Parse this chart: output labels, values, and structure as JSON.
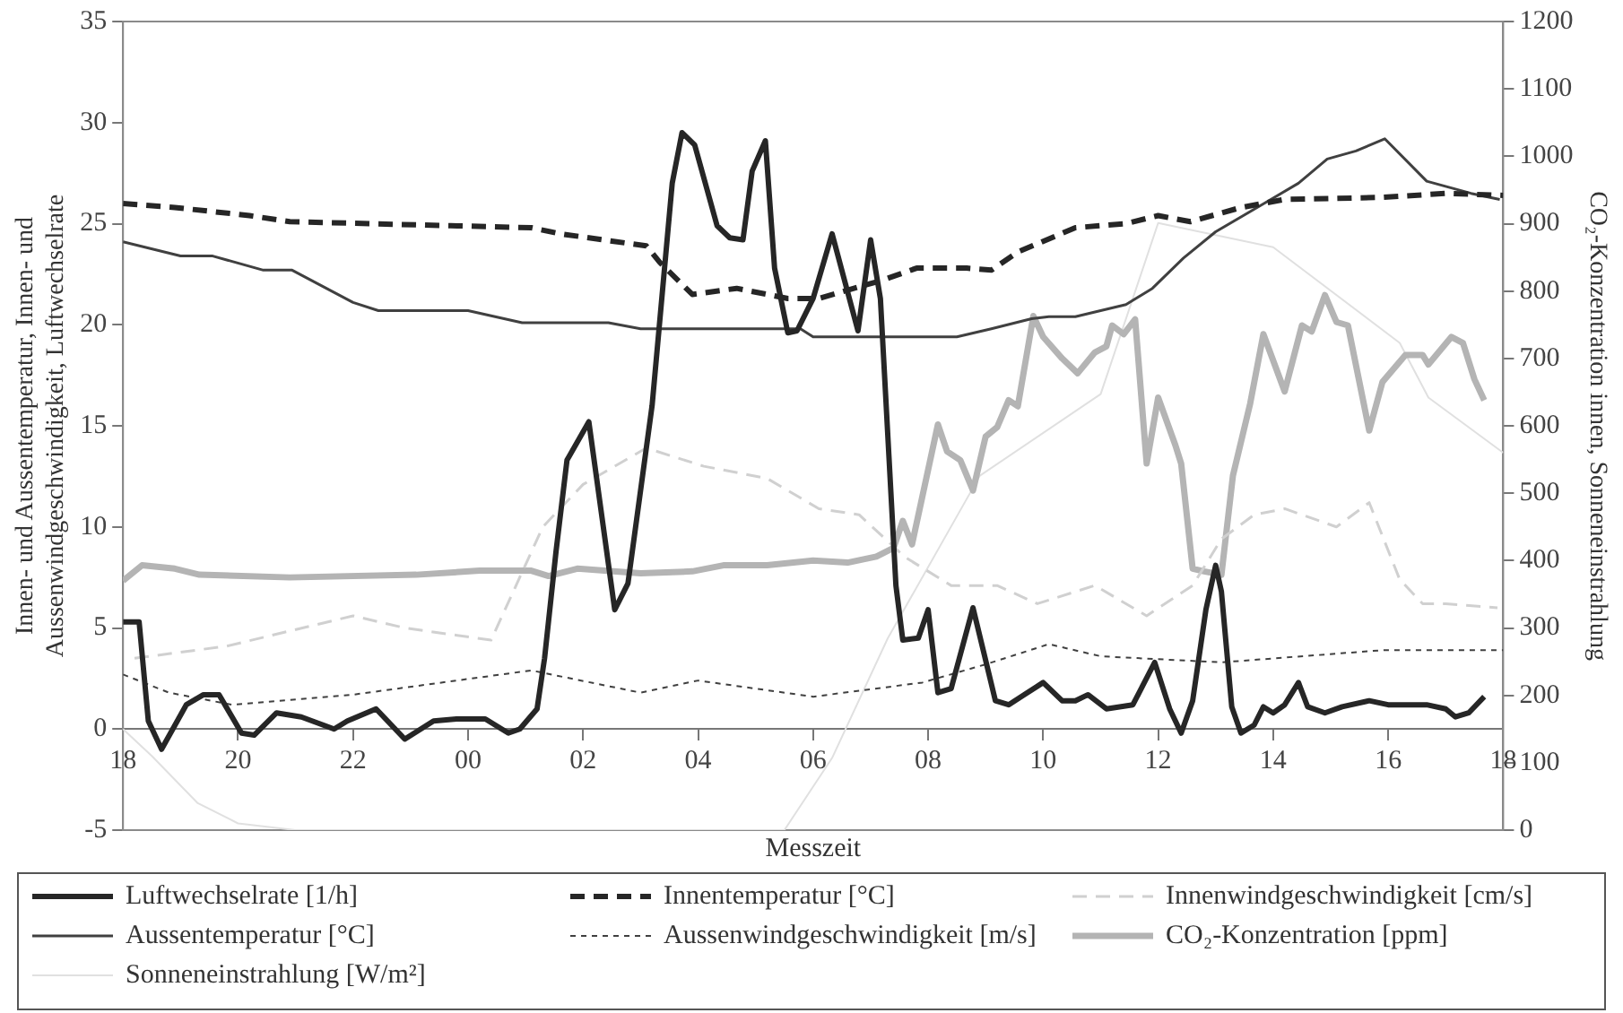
{
  "chart_data": {
    "type": "line",
    "xlabel": "Messzeit",
    "ylabel": [
      "Innen- und Aussentemperatur, Innen- und",
      "Aussenwindgeschwindigkeit, Luftwechselrate"
    ],
    "y2label": "CO₂-Konzentration innen, Sonneneinstrahlung",
    "xlim": [
      18,
      42
    ],
    "xticks": [
      {
        "value": 18,
        "label": "18"
      },
      {
        "value": 20,
        "label": "20"
      },
      {
        "value": 22,
        "label": "22"
      },
      {
        "value": 24,
        "label": "00"
      },
      {
        "value": 26,
        "label": "02"
      },
      {
        "value": 28,
        "label": "04"
      },
      {
        "value": 30,
        "label": "06"
      },
      {
        "value": 32,
        "label": "08"
      },
      {
        "value": 34,
        "label": "10"
      },
      {
        "value": 36,
        "label": "12"
      },
      {
        "value": 38,
        "label": "14"
      },
      {
        "value": 40,
        "label": "16"
      },
      {
        "value": 42,
        "label": "18"
      }
    ],
    "ylim": [
      -5,
      35
    ],
    "yticks": [
      -5,
      0,
      5,
      10,
      15,
      20,
      25,
      30,
      35
    ],
    "y2lim": [
      0,
      1200
    ],
    "y2ticks": [
      0,
      100,
      200,
      300,
      400,
      500,
      600,
      700,
      800,
      900,
      1000,
      1100,
      1200
    ],
    "grid": false,
    "legend": "bottom",
    "marker": "none",
    "series": [
      {
        "name": "Luftwechselrate [1/h]",
        "color": "#262626",
        "line_style": "solid",
        "x": [
          18,
          18.28,
          18.44,
          18.67,
          19.1,
          19.4,
          19.67,
          20.06,
          20.28,
          20.67,
          21.1,
          21.67,
          21.9,
          22.4,
          22.9,
          23.4,
          23.8,
          24.3,
          24.7,
          24.9,
          25.2,
          25.33,
          25.53,
          25.72,
          26.1,
          26.55,
          26.78,
          27.2,
          27.55,
          27.72,
          27.94,
          28.33,
          28.55,
          28.78,
          28.94,
          29.17,
          29.33,
          29.56,
          29.72,
          30,
          30.33,
          30.78,
          31,
          31.17,
          31.44,
          31.56,
          31.83,
          32,
          32.17,
          32.4,
          32.78,
          33.17,
          33.4,
          33.67,
          34,
          34.33,
          34.56,
          34.78,
          35.1,
          35.56,
          35.94,
          36.2,
          36.4,
          36.6,
          36.83,
          37,
          37.1,
          37.28,
          37.44,
          37.67,
          37.83,
          38,
          38.2,
          38.44,
          38.6,
          38.9,
          39.2,
          39.67,
          40,
          40.67,
          41,
          41.17,
          41.4,
          41.67
        ],
        "values": [
          5.3,
          5.3,
          0.4,
          -1.0,
          1.2,
          1.7,
          1.7,
          -0.2,
          -0.3,
          0.8,
          0.6,
          0.0,
          0.4,
          1.0,
          -0.5,
          0.4,
          0.5,
          0.5,
          -0.2,
          0.0,
          1.0,
          3.5,
          8.8,
          13.3,
          15.2,
          5.9,
          7.2,
          16.0,
          27.0,
          29.5,
          28.9,
          24.9,
          24.3,
          24.2,
          27.6,
          29.1,
          22.8,
          19.6,
          19.7,
          21.3,
          24.5,
          19.7,
          24.2,
          21.3,
          7.1,
          4.4,
          4.5,
          5.9,
          1.8,
          2.0,
          6.0,
          1.4,
          1.2,
          1.7,
          2.3,
          1.4,
          1.4,
          1.7,
          1.0,
          1.2,
          3.3,
          1.0,
          -0.2,
          1.4,
          5.9,
          8.1,
          6.8,
          1.1,
          -0.2,
          0.2,
          1.1,
          0.8,
          1.2,
          2.3,
          1.1,
          0.8,
          1.1,
          1.4,
          1.2,
          1.2,
          1.0,
          0.6,
          0.8,
          1.6
        ]
      },
      {
        "name": "Innentemperatur [°C]",
        "color": "#262626",
        "line_style": "dashed",
        "x": [
          18,
          18.9,
          20.2,
          20.9,
          23.7,
          25.1,
          25.6,
          27.1,
          27.33,
          27.9,
          28.67,
          29.56,
          30.1,
          31.2,
          31.8,
          32.67,
          33.1,
          33.56,
          34.56,
          35.44,
          36,
          36.56,
          37.44,
          38.2,
          39.9,
          41,
          42
        ],
        "values": [
          26.0,
          25.8,
          25.4,
          25.1,
          24.9,
          24.8,
          24.5,
          23.9,
          23.1,
          21.5,
          21.8,
          21.3,
          21.3,
          22.2,
          22.8,
          22.8,
          22.7,
          23.6,
          24.8,
          25.0,
          25.4,
          25.1,
          25.8,
          26.2,
          26.3,
          26.5,
          26.4
        ]
      },
      {
        "name": "Innenwindgeschwindigkeit [cm/s]",
        "color": "#d0d0d0",
        "line_style": "dashed",
        "x": [
          18.2,
          19.8,
          22,
          22.9,
          24.4,
          25.3,
          26,
          27.1,
          28.1,
          29.2,
          30.1,
          30.8,
          31.6,
          32.4,
          33.2,
          33.9,
          34.9,
          35.8,
          36.6,
          37.1,
          37.67,
          38.2,
          39.1,
          39.67,
          40.2,
          40.6,
          41,
          41.9
        ],
        "values": [
          3.5,
          4.1,
          5.6,
          5.0,
          4.4,
          10.0,
          12.1,
          13.9,
          13.0,
          12.4,
          10.9,
          10.6,
          8.5,
          7.1,
          7.1,
          6.2,
          7.1,
          5.6,
          7.1,
          9.4,
          10.6,
          10.9,
          10.0,
          11.2,
          7.4,
          6.2,
          6.2,
          6.0
        ]
      },
      {
        "name": "Aussentemperatur [°C]",
        "color": "#404040",
        "line_style": "solid",
        "x": [
          18,
          19,
          19.56,
          20.44,
          20.94,
          22,
          22.44,
          24,
          24.94,
          26.44,
          27,
          29.78,
          30,
          32.5,
          33.1,
          33.8,
          34.1,
          34.56,
          35.44,
          35.9,
          36.44,
          37,
          37.9,
          38.44,
          38.94,
          39.44,
          39.94,
          40.67,
          41.44,
          41.94
        ],
        "values": [
          24.1,
          23.4,
          23.4,
          22.7,
          22.7,
          21.1,
          20.7,
          20.7,
          20.1,
          20.1,
          19.8,
          19.8,
          19.4,
          19.4,
          19.8,
          20.3,
          20.4,
          20.4,
          21.0,
          21.8,
          23.3,
          24.6,
          26.1,
          27.0,
          28.2,
          28.6,
          29.2,
          27.1,
          26.5,
          26.2
        ]
      },
      {
        "name": "Aussenwindgeschwindigkeit [m/s]",
        "color": "#404040",
        "line_style": "dotted",
        "x": [
          18,
          18.8,
          19.9,
          22,
          23.8,
          25.1,
          27,
          28,
          30,
          31.9,
          33,
          34.1,
          35,
          37.1,
          39.9,
          42
        ],
        "values": [
          2.7,
          1.8,
          1.2,
          1.7,
          2.4,
          2.9,
          1.8,
          2.4,
          1.6,
          2.3,
          3.2,
          4.2,
          3.6,
          3.3,
          3.9,
          3.9
        ]
      },
      {
        "name": "CO₂-Konzentration [ppm]",
        "color": "#b4b4b4",
        "line_style": "solid",
        "axis": "y2",
        "x": [
          18,
          18.33,
          18.9,
          19.33,
          20.9,
          23.1,
          24.2,
          25.1,
          25.4,
          25.9,
          27,
          27.9,
          28.44,
          29.2,
          30,
          30.6,
          31.1,
          31.4,
          31.56,
          31.72,
          32.17,
          32.33,
          32.56,
          32.78,
          33,
          33.2,
          33.4,
          33.56,
          33.83,
          34,
          34.33,
          34.6,
          34.9,
          35.1,
          35.2,
          35.4,
          35.6,
          35.8,
          36,
          36.3,
          36.4,
          36.6,
          36.8,
          37.1,
          37.3,
          37.6,
          37.83,
          38.2,
          38.5,
          38.67,
          38.9,
          39.1,
          39.3,
          39.67,
          39.9,
          40.3,
          40.6,
          40.7,
          41.1,
          41.3,
          41.5,
          41.67
        ],
        "values": [
          370,
          393,
          388,
          379,
          375,
          379,
          385,
          385,
          377,
          388,
          381,
          384,
          393,
          393,
          400,
          397,
          406,
          419,
          459,
          424,
          602,
          562,
          549,
          504,
          584,
          598,
          638,
          629,
          763,
          732,
          700,
          678,
          709,
          718,
          749,
          736,
          758,
          544,
          642,
          571,
          544,
          388,
          384,
          379,
          526,
          633,
          736,
          651,
          749,
          740,
          794,
          754,
          749,
          593,
          665,
          705,
          705,
          691,
          732,
          723,
          669,
          638
        ]
      },
      {
        "name": "Sonneneinstrahlung [W/m²]",
        "color": "#e0e0e0",
        "line_style": "solid",
        "axis": "y2",
        "x": [
          18,
          18.5,
          19.3,
          20,
          21,
          29.5,
          30.33,
          31.3,
          32.9,
          35,
          36,
          38,
          40.2,
          40.7,
          42
        ],
        "values": [
          150,
          110,
          40,
          10,
          0,
          0,
          107,
          285,
          526,
          647,
          901,
          865,
          723,
          642,
          560
        ]
      }
    ]
  }
}
